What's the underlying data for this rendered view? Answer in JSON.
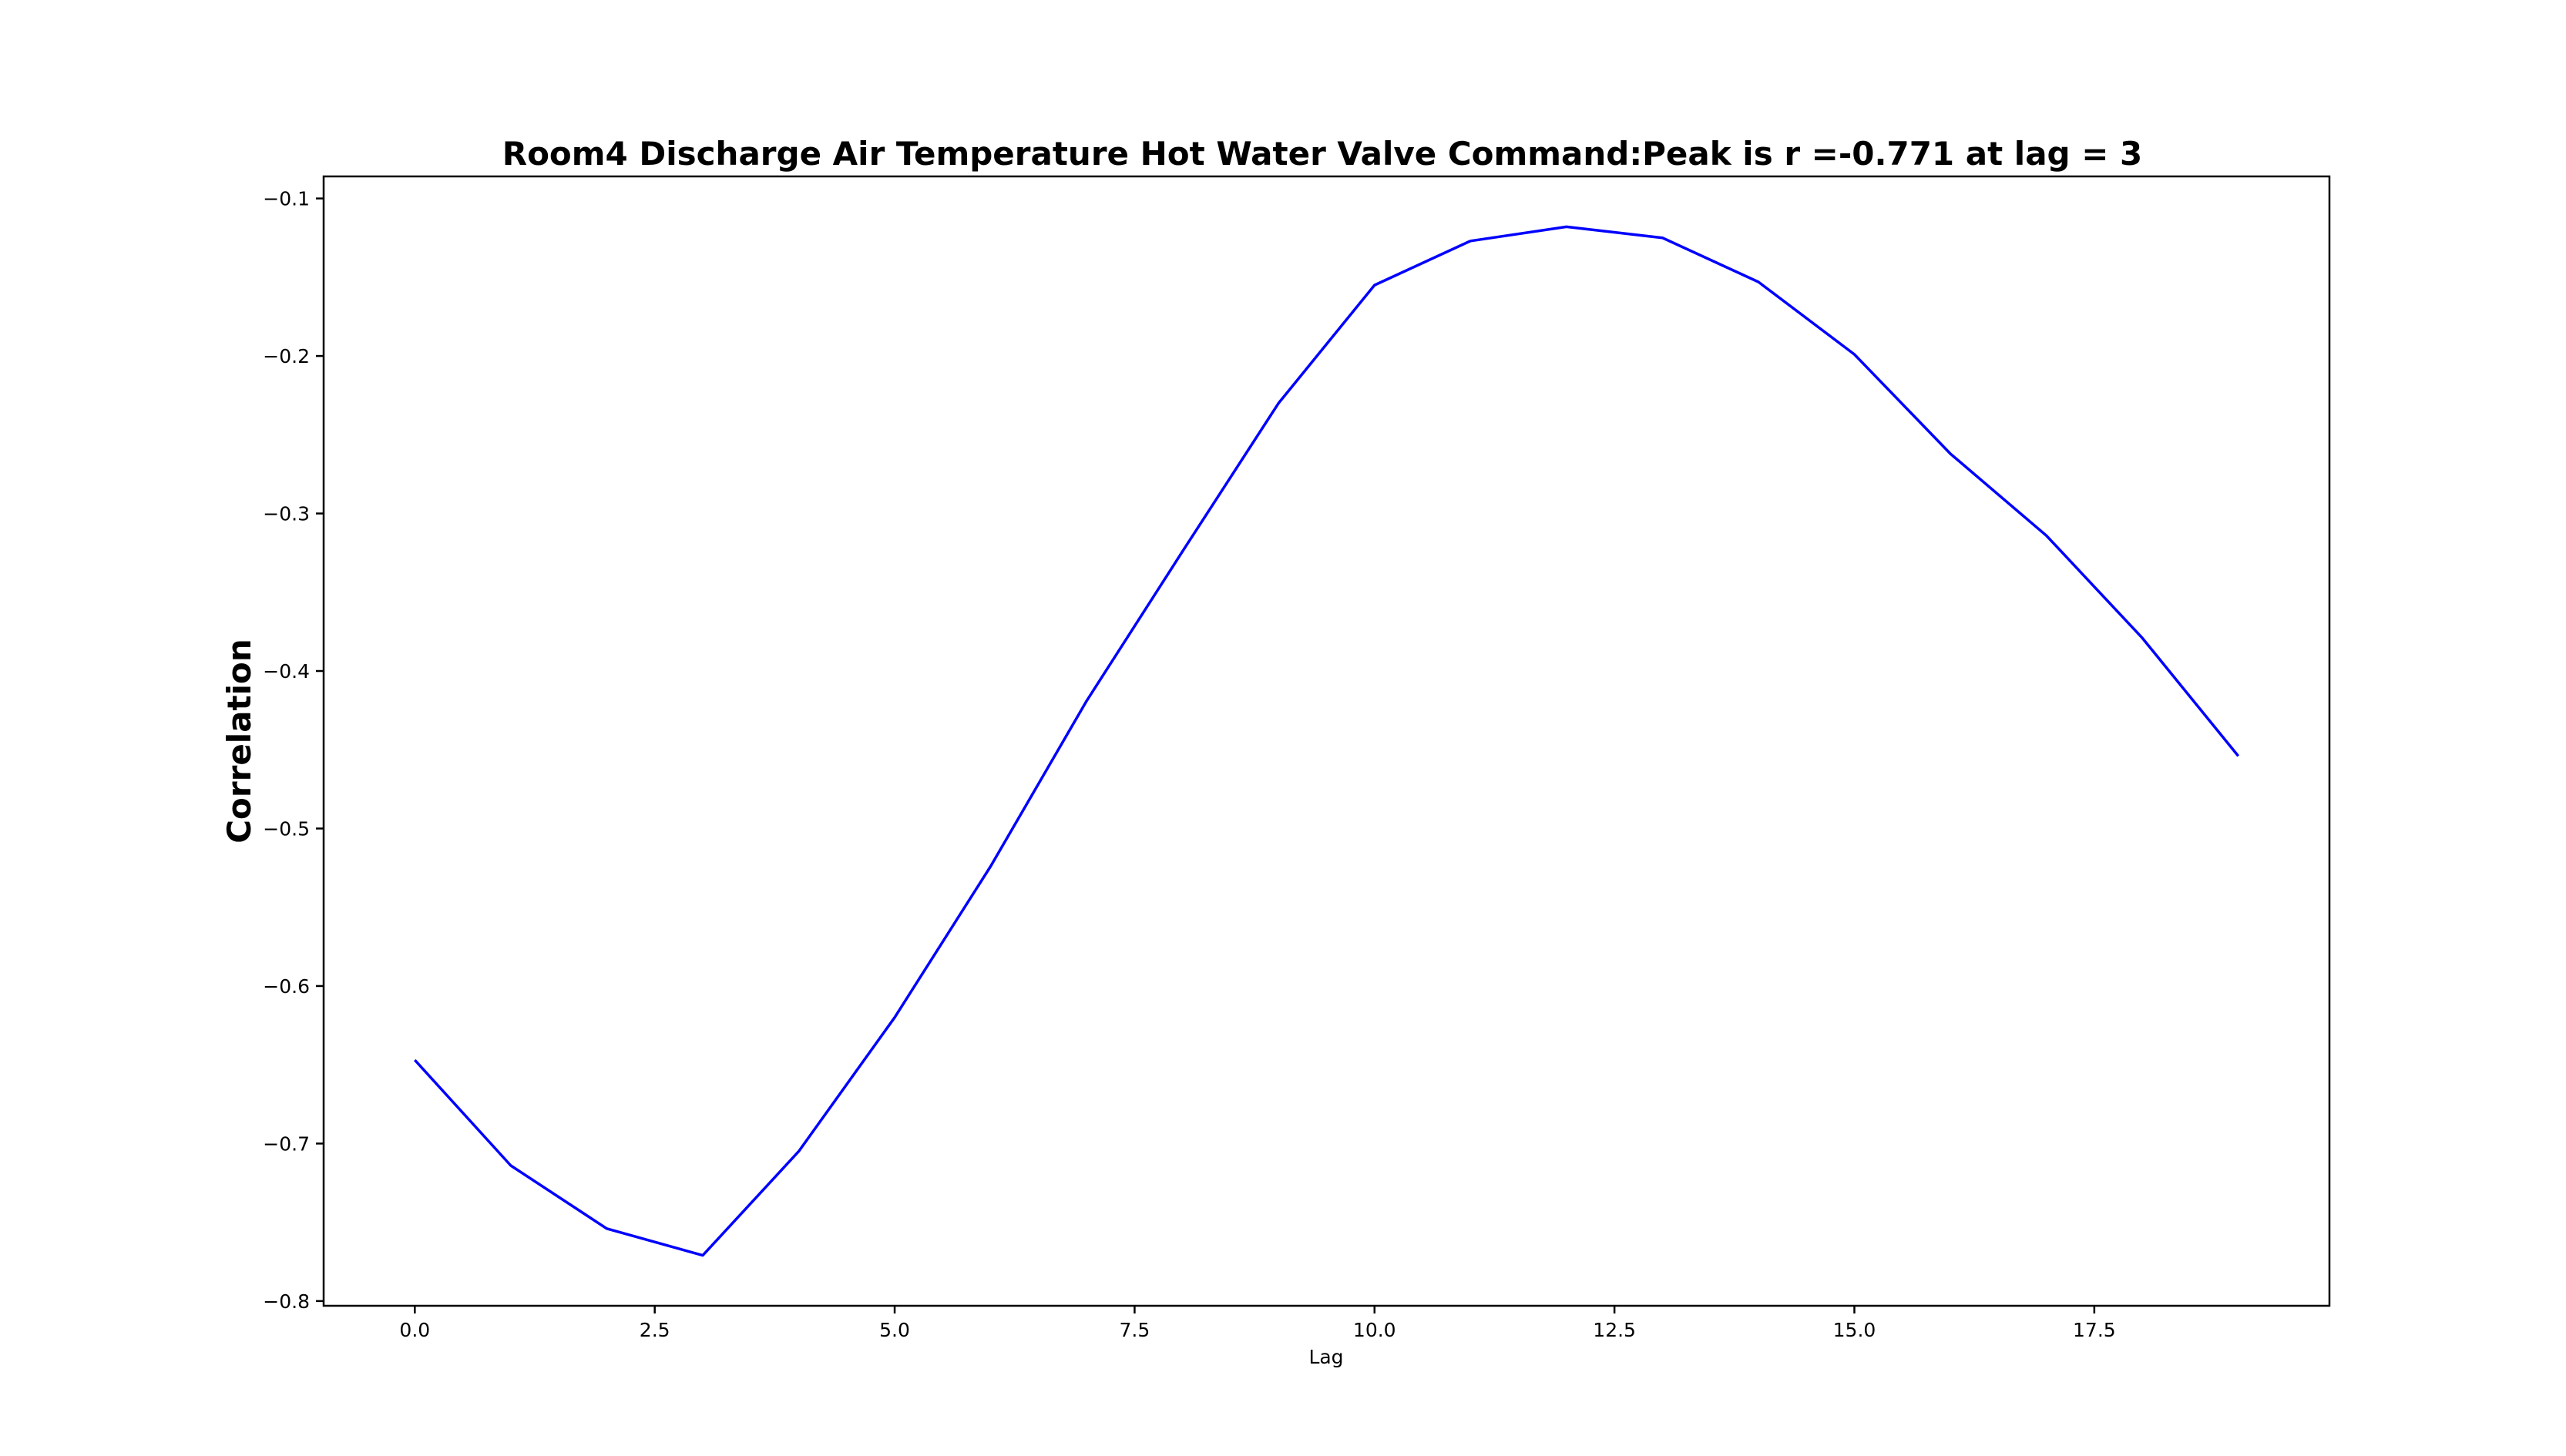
{
  "chart_data": {
    "type": "line",
    "title": "Room4 Discharge Air Temperature Hot Water Valve Command:Peak is r =-0.771 at lag = 3",
    "xlabel": "Lag",
    "ylabel": "Correlation",
    "xlim": [
      -0.95,
      19.95
    ],
    "ylim": [
      -0.803,
      -0.086
    ],
    "grid": false,
    "x_ticks": [
      0.0,
      2.5,
      5.0,
      7.5,
      10.0,
      12.5,
      15.0,
      17.5
    ],
    "x_tick_labels": [
      "0.0",
      "2.5",
      "5.0",
      "7.5",
      "10.0",
      "12.5",
      "15.0",
      "17.5"
    ],
    "y_ticks": [
      -0.1,
      -0.2,
      -0.3,
      -0.4,
      -0.5,
      -0.6,
      -0.7,
      -0.8
    ],
    "y_tick_labels": [
      "−0.1",
      "−0.2",
      "−0.3",
      "−0.4",
      "−0.5",
      "−0.6",
      "−0.7",
      "−0.8"
    ],
    "series": [
      {
        "color": "#0000ff",
        "x": [
          0,
          1,
          2,
          3,
          4,
          5,
          6,
          7,
          8,
          9,
          10,
          11,
          12,
          13,
          14,
          15,
          16,
          17,
          18,
          19
        ],
        "values": [
          -0.647,
          -0.714,
          -0.754,
          -0.771,
          -0.705,
          -0.62,
          -0.524,
          -0.419,
          -0.324,
          -0.23,
          -0.155,
          -0.127,
          -0.118,
          -0.125,
          -0.153,
          -0.199,
          -0.262,
          -0.314,
          -0.379,
          -0.454
        ]
      }
    ]
  }
}
